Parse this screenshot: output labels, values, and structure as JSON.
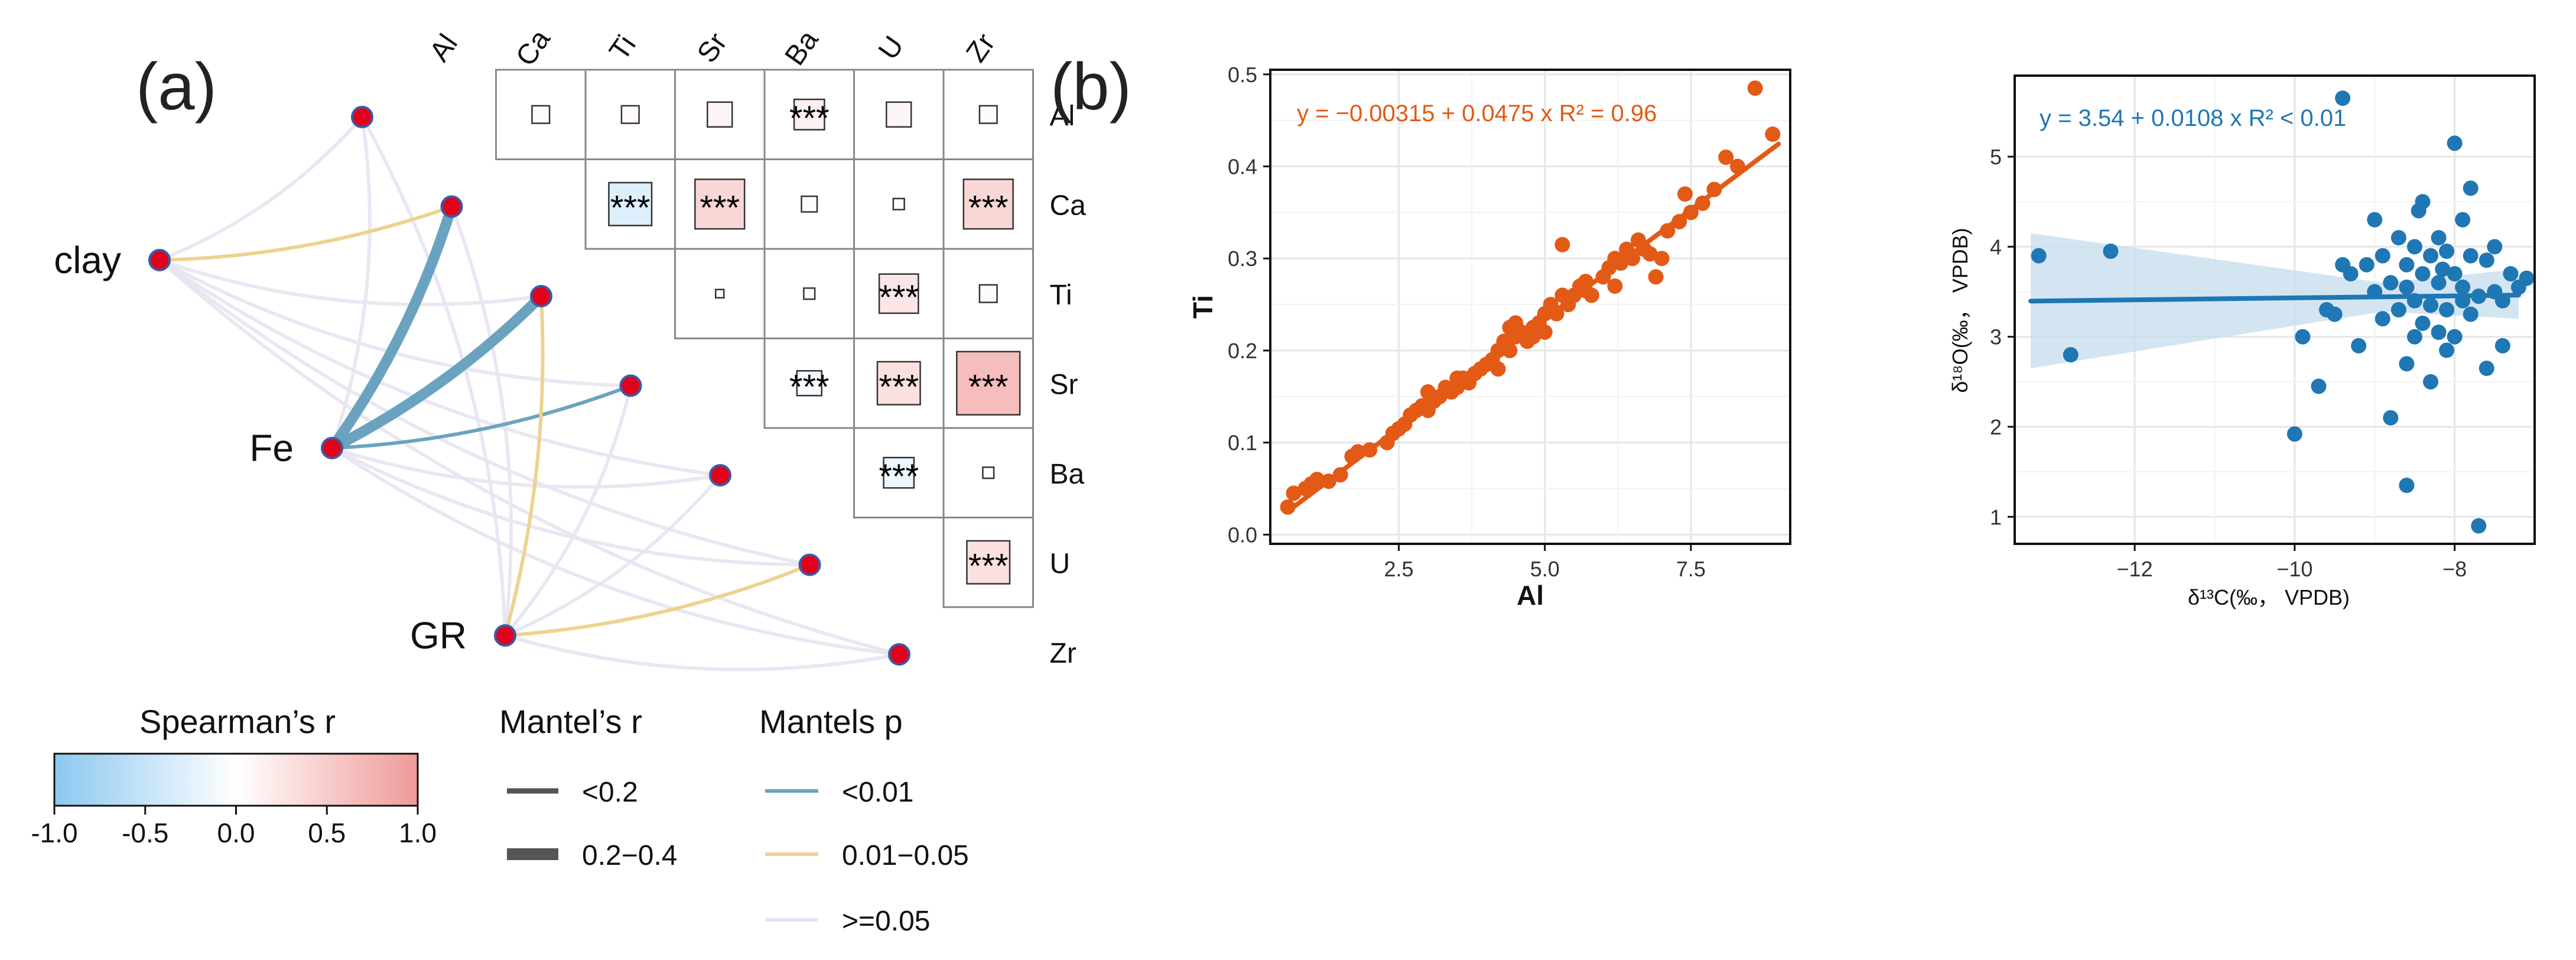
{
  "panel_a": {
    "label": "(a)",
    "variables": [
      "Al",
      "Ca",
      "Ti",
      "Sr",
      "Ba",
      "U",
      "Zr"
    ],
    "significance_marker": "***",
    "cells": [
      {
        "row": "Al",
        "col": "Ca",
        "r": 0.05,
        "sig": false
      },
      {
        "row": "Al",
        "col": "Ti",
        "r": 0.05,
        "sig": false
      },
      {
        "row": "Al",
        "col": "Sr",
        "r": 0.1,
        "sig": false
      },
      {
        "row": "Al",
        "col": "Ba",
        "r": 0.15,
        "sig": true
      },
      {
        "row": "Al",
        "col": "U",
        "r": 0.1,
        "sig": false
      },
      {
        "row": "Al",
        "col": "Zr",
        "r": 0.05,
        "sig": false
      },
      {
        "row": "Ca",
        "col": "Ti",
        "r": -0.3,
        "sig": true
      },
      {
        "row": "Ca",
        "col": "Sr",
        "r": 0.4,
        "sig": true
      },
      {
        "row": "Ca",
        "col": "Ba",
        "r": 0.04,
        "sig": false
      },
      {
        "row": "Ca",
        "col": "U",
        "r": 0.02,
        "sig": false
      },
      {
        "row": "Ca",
        "col": "Zr",
        "r": 0.4,
        "sig": true
      },
      {
        "row": "Ti",
        "col": "Sr",
        "r": 0.01,
        "sig": false
      },
      {
        "row": "Ti",
        "col": "Ba",
        "r": 0.02,
        "sig": false
      },
      {
        "row": "Ti",
        "col": "U",
        "r": 0.25,
        "sig": true
      },
      {
        "row": "Ti",
        "col": "Zr",
        "r": 0.05,
        "sig": false
      },
      {
        "row": "Sr",
        "col": "Ba",
        "r": -0.1,
        "sig": true
      },
      {
        "row": "Sr",
        "col": "U",
        "r": 0.3,
        "sig": true
      },
      {
        "row": "Sr",
        "col": "Zr",
        "r": 0.65,
        "sig": true
      },
      {
        "row": "Ba",
        "col": "U",
        "r": -0.15,
        "sig": true
      },
      {
        "row": "Ba",
        "col": "Zr",
        "r": 0.02,
        "sig": false
      },
      {
        "row": "U",
        "col": "Zr",
        "r": 0.3,
        "sig": true
      }
    ],
    "network_nodes": [
      "clay",
      "Fe",
      "GR"
    ],
    "links": [
      {
        "from": "clay",
        "to": "Ca",
        "r": "<0.2",
        "p": "0.01-0.05"
      },
      {
        "from": "clay",
        "to": "Al",
        "r": "<0.2",
        "p": ">=0.05"
      },
      {
        "from": "clay",
        "to": "Ti",
        "r": "<0.2",
        "p": ">=0.05"
      },
      {
        "from": "clay",
        "to": "Sr",
        "r": "<0.2",
        "p": ">=0.05"
      },
      {
        "from": "clay",
        "to": "Ba",
        "r": "<0.2",
        "p": ">=0.05"
      },
      {
        "from": "clay",
        "to": "U",
        "r": "<0.2",
        "p": ">=0.05"
      },
      {
        "from": "clay",
        "to": "Zr",
        "r": "<0.2",
        "p": ">=0.05"
      },
      {
        "from": "Fe",
        "to": "Ca",
        "r": "0.2-0.4",
        "p": "<0.01"
      },
      {
        "from": "Fe",
        "to": "Ti",
        "r": "0.2-0.4",
        "p": "<0.01"
      },
      {
        "from": "Fe",
        "to": "Sr",
        "r": "<0.2",
        "p": "<0.01"
      },
      {
        "from": "Fe",
        "to": "Al",
        "r": "<0.2",
        "p": ">=0.05"
      },
      {
        "from": "Fe",
        "to": "Ba",
        "r": "<0.2",
        "p": ">=0.05"
      },
      {
        "from": "Fe",
        "to": "U",
        "r": "<0.2",
        "p": ">=0.05"
      },
      {
        "from": "Fe",
        "to": "Zr",
        "r": "<0.2",
        "p": ">=0.05"
      },
      {
        "from": "GR",
        "to": "Ti",
        "r": "<0.2",
        "p": "0.01-0.05"
      },
      {
        "from": "GR",
        "to": "U",
        "r": "<0.2",
        "p": "0.01-0.05"
      },
      {
        "from": "GR",
        "to": "Al",
        "r": "<0.2",
        "p": ">=0.05"
      },
      {
        "from": "GR",
        "to": "Ca",
        "r": "<0.2",
        "p": ">=0.05"
      },
      {
        "from": "GR",
        "to": "Sr",
        "r": "<0.2",
        "p": ">=0.05"
      },
      {
        "from": "GR",
        "to": "Ba",
        "r": "<0.2",
        "p": ">=0.05"
      },
      {
        "from": "GR",
        "to": "Zr",
        "r": "<0.2",
        "p": ">=0.05"
      }
    ],
    "legend": {
      "spearman_title": "Spearman’s r",
      "spearman_ticks": [
        "-1.0",
        "-0.5",
        "0.0",
        "0.5",
        "1.0"
      ],
      "mantel_r_title": "Mantel’s r",
      "mantel_r_items": [
        "<0.2",
        "0.2−0.4"
      ],
      "mantel_p_title": "Mantels p",
      "mantel_p_items": [
        "<0.01",
        "0.01−0.05",
        ">=0.05"
      ]
    }
  },
  "panel_b": {
    "label": "(b)"
  },
  "colors": {
    "node": "#e3001b",
    "node_border": "#3a5ba8",
    "p_lt_001": "#6aa3bf",
    "p_001_005": "#ecd38f",
    "p_ge_005": "#e8e4f2",
    "orange": "#e35a16",
    "blue": "#1f77b4",
    "ci_band": "#c6dcee",
    "neg": "#8cc8f0",
    "pos": "#ef9a98"
  },
  "chart_data": [
    {
      "type": "scatter",
      "xlabel": "Al",
      "ylabel": "Ti",
      "xlim": [
        0.3,
        9.2
      ],
      "ylim": [
        -0.01,
        0.505
      ],
      "xticks": [
        2.5,
        5.0,
        7.5
      ],
      "xticklabels": [
        "2.5",
        "5.0",
        "7.5"
      ],
      "yticks": [
        0.0,
        0.1,
        0.2,
        0.3,
        0.4,
        0.5
      ],
      "yticklabels": [
        "0.0",
        "0.1",
        "0.2",
        "0.3",
        "0.4",
        "0.5"
      ],
      "grid": true,
      "annotation": "y = −0.00315 + 0.0475 x   R² = 0.96",
      "fit": {
        "intercept": -0.00315,
        "slope": 0.0475,
        "x_range": [
          0.6,
          9.0
        ]
      },
      "points": [
        [
          0.6,
          0.03
        ],
        [
          0.7,
          0.045
        ],
        [
          0.9,
          0.05
        ],
        [
          1.0,
          0.055
        ],
        [
          1.1,
          0.06
        ],
        [
          1.3,
          0.058
        ],
        [
          1.5,
          0.065
        ],
        [
          1.7,
          0.085
        ],
        [
          1.8,
          0.09
        ],
        [
          2.0,
          0.092
        ],
        [
          2.3,
          0.1
        ],
        [
          2.4,
          0.11
        ],
        [
          2.6,
          0.12
        ],
        [
          2.7,
          0.13
        ],
        [
          2.8,
          0.135
        ],
        [
          2.9,
          0.14
        ],
        [
          3.0,
          0.135
        ],
        [
          3.1,
          0.145
        ],
        [
          3.2,
          0.15
        ],
        [
          3.3,
          0.16
        ],
        [
          3.4,
          0.155
        ],
        [
          3.5,
          0.16
        ],
        [
          3.6,
          0.17
        ],
        [
          3.7,
          0.165
        ],
        [
          3.8,
          0.175
        ],
        [
          3.9,
          0.18
        ],
        [
          4.0,
          0.185
        ],
        [
          4.1,
          0.19
        ],
        [
          4.2,
          0.2
        ],
        [
          4.2,
          0.18
        ],
        [
          4.3,
          0.21
        ],
        [
          4.4,
          0.2
        ],
        [
          4.5,
          0.215
        ],
        [
          4.5,
          0.23
        ],
        [
          4.6,
          0.22
        ],
        [
          4.7,
          0.21
        ],
        [
          4.8,
          0.225
        ],
        [
          4.9,
          0.23
        ],
        [
          5.0,
          0.22
        ],
        [
          5.0,
          0.24
        ],
        [
          5.1,
          0.25
        ],
        [
          5.2,
          0.24
        ],
        [
          5.3,
          0.26
        ],
        [
          5.3,
          0.315
        ],
        [
          5.4,
          0.25
        ],
        [
          5.5,
          0.26
        ],
        [
          5.6,
          0.27
        ],
        [
          5.7,
          0.275
        ],
        [
          5.8,
          0.26
        ],
        [
          6.0,
          0.28
        ],
        [
          6.1,
          0.29
        ],
        [
          6.2,
          0.27
        ],
        [
          6.2,
          0.3
        ],
        [
          6.3,
          0.295
        ],
        [
          6.4,
          0.31
        ],
        [
          6.5,
          0.3
        ],
        [
          6.6,
          0.32
        ],
        [
          6.7,
          0.31
        ],
        [
          6.9,
          0.28
        ],
        [
          7.0,
          0.3
        ],
        [
          7.1,
          0.33
        ],
        [
          7.3,
          0.34
        ],
        [
          7.4,
          0.37
        ],
        [
          7.5,
          0.35
        ],
        [
          7.7,
          0.36
        ],
        [
          7.9,
          0.375
        ],
        [
          8.1,
          0.41
        ],
        [
          8.3,
          0.4
        ],
        [
          8.6,
          0.485
        ],
        [
          8.9,
          0.435
        ],
        [
          4.4,
          0.225
        ],
        [
          4.8,
          0.215
        ],
        [
          5.7,
          0.265
        ],
        [
          6.8,
          0.305
        ],
        [
          3.5,
          0.17
        ],
        [
          3.0,
          0.155
        ],
        [
          2.5,
          0.115
        ]
      ]
    },
    {
      "type": "scatter",
      "xlabel": "δ¹³C(‰， VPDB)",
      "ylabel": "δ¹⁸O(‰， VPDB)",
      "xlim": [
        -13.5,
        -7.0
      ],
      "ylim": [
        0.7,
        5.9
      ],
      "xticks": [
        -12,
        -10,
        -8
      ],
      "xticklabels": [
        "−12",
        "−10",
        "−8"
      ],
      "yticks": [
        1,
        2,
        3,
        4,
        5
      ],
      "yticklabels": [
        "1",
        "2",
        "3",
        "4",
        "5"
      ],
      "grid": true,
      "annotation": "y = 3.54 + 0.0108 x   R² < 0.01",
      "fit": {
        "intercept": 3.54,
        "slope": 0.0108,
        "x_range": [
          -13.3,
          -7.2
        ]
      },
      "ci_band": [
        [
          -13.3,
          2.65,
          4.15
        ],
        [
          -8.9,
          3.28,
          3.6
        ],
        [
          -7.2,
          3.2,
          3.75
        ]
      ],
      "points": [
        [
          -13.2,
          3.9
        ],
        [
          -12.8,
          2.8
        ],
        [
          -12.3,
          3.95
        ],
        [
          -10.0,
          1.92
        ],
        [
          -9.9,
          3.0
        ],
        [
          -9.7,
          2.45
        ],
        [
          -9.6,
          3.3
        ],
        [
          -9.5,
          3.25
        ],
        [
          -9.4,
          5.65
        ],
        [
          -9.4,
          3.8
        ],
        [
          -9.3,
          3.7
        ],
        [
          -9.2,
          2.9
        ],
        [
          -9.1,
          3.8
        ],
        [
          -9.0,
          4.3
        ],
        [
          -9.0,
          3.5
        ],
        [
          -8.9,
          3.2
        ],
        [
          -8.9,
          3.9
        ],
        [
          -8.8,
          2.1
        ],
        [
          -8.8,
          3.6
        ],
        [
          -8.7,
          4.1
        ],
        [
          -8.7,
          3.3
        ],
        [
          -8.6,
          1.35
        ],
        [
          -8.6,
          3.8
        ],
        [
          -8.6,
          2.7
        ],
        [
          -8.5,
          4.0
        ],
        [
          -8.5,
          3.4
        ],
        [
          -8.5,
          3.0
        ],
        [
          -8.4,
          4.5
        ],
        [
          -8.4,
          3.7
        ],
        [
          -8.4,
          3.15
        ],
        [
          -8.3,
          3.9
        ],
        [
          -8.3,
          3.35
        ],
        [
          -8.3,
          2.5
        ],
        [
          -8.2,
          4.1
        ],
        [
          -8.2,
          3.6
        ],
        [
          -8.2,
          3.05
        ],
        [
          -8.1,
          3.95
        ],
        [
          -8.1,
          3.3
        ],
        [
          -8.1,
          2.85
        ],
        [
          -8.0,
          5.15
        ],
        [
          -8.0,
          3.7
        ],
        [
          -8.0,
          3.0
        ],
        [
          -7.9,
          4.3
        ],
        [
          -7.9,
          3.55
        ],
        [
          -7.9,
          3.4
        ],
        [
          -7.8,
          4.65
        ],
        [
          -7.8,
          3.25
        ],
        [
          -7.8,
          3.9
        ],
        [
          -7.7,
          0.9
        ],
        [
          -7.7,
          3.45
        ],
        [
          -7.6,
          2.65
        ],
        [
          -7.5,
          3.5
        ],
        [
          -7.5,
          4.0
        ],
        [
          -7.4,
          3.4
        ],
        [
          -7.4,
          2.9
        ],
        [
          -7.3,
          3.7
        ],
        [
          -7.2,
          3.55
        ],
        [
          -7.1,
          3.65
        ],
        [
          -7.6,
          3.85
        ],
        [
          -8.6,
          3.55
        ],
        [
          -8.45,
          4.4
        ],
        [
          -8.15,
          3.75
        ]
      ]
    }
  ]
}
